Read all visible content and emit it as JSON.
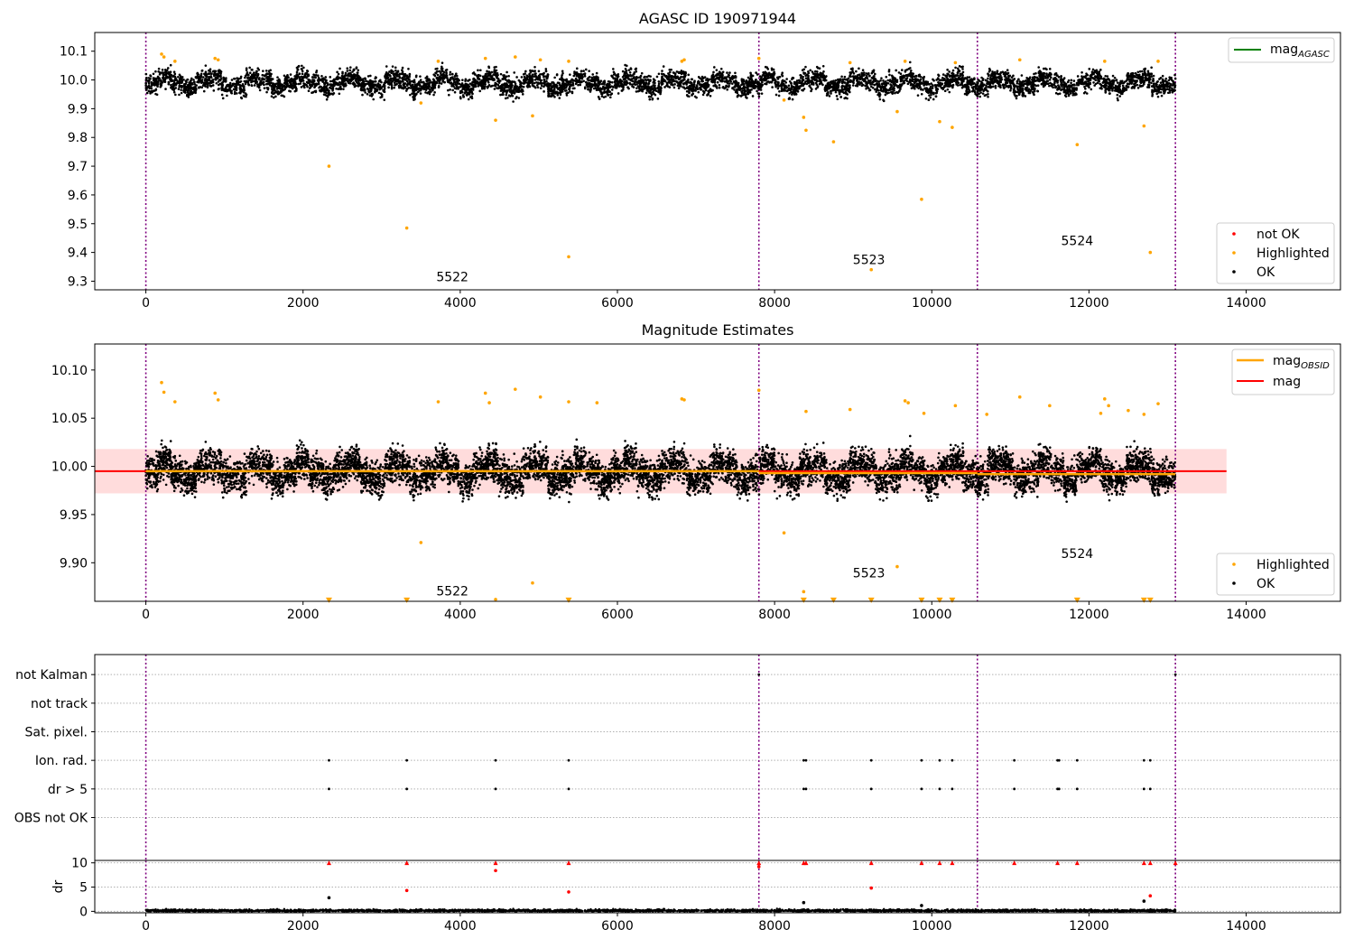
{
  "chart_data": [
    {
      "type": "scatter",
      "title": "AGASC ID 190971944",
      "xlabel": "",
      "ylabel": "",
      "xlim": [
        -650,
        15200
      ],
      "ylim": [
        9.27,
        10.165
      ],
      "xticks": [
        0,
        2000,
        4000,
        6000,
        8000,
        10000,
        12000,
        14000
      ],
      "yticks": [
        9.3,
        9.4,
        9.5,
        9.6,
        9.7,
        9.8,
        9.9,
        10.0,
        10.1
      ],
      "ytick_labels": [
        "9.3",
        "9.4",
        "9.5",
        "9.6",
        "9.7",
        "9.8",
        "9.9",
        "10.0",
        "10.1"
      ],
      "vlines": [
        0,
        7800,
        10580,
        13100
      ],
      "obsid_labels": [
        {
          "text": "5522",
          "x": 3900,
          "y": 9.3
        },
        {
          "text": "5523",
          "x": 9200,
          "y": 9.36
        },
        {
          "text": "5524",
          "x": 11850,
          "y": 9.425
        }
      ],
      "ok_band": {
        "x_range": [
          0,
          13100
        ],
        "center": 9.99,
        "spread": 0.055
      },
      "series": [
        {
          "name": "mag",
          "sub": "AGASC",
          "color": "#008000",
          "kind": "line",
          "values": []
        },
        {
          "name": "not OK",
          "color": "#ff0000",
          "kind": "marker",
          "points": []
        },
        {
          "name": "Highlighted",
          "color": "#ffa500",
          "kind": "marker",
          "points": [
            [
              200,
              10.09
            ],
            [
              230,
              10.08
            ],
            [
              370,
              10.065
            ],
            [
              880,
              10.075
            ],
            [
              920,
              10.07
            ],
            [
              2330,
              9.7
            ],
            [
              3320,
              9.485
            ],
            [
              3500,
              9.92
            ],
            [
              3720,
              10.065
            ],
            [
              4320,
              10.075
            ],
            [
              4450,
              9.86
            ],
            [
              4700,
              10.08
            ],
            [
              4920,
              9.875
            ],
            [
              5020,
              10.07
            ],
            [
              5380,
              9.385
            ],
            [
              5380,
              10.065
            ],
            [
              6820,
              10.065
            ],
            [
              6850,
              10.07
            ],
            [
              7800,
              10.075
            ],
            [
              8120,
              9.93
            ],
            [
              8370,
              9.87
            ],
            [
              8400,
              9.825
            ],
            [
              8750,
              9.785
            ],
            [
              8960,
              10.06
            ],
            [
              9230,
              9.34
            ],
            [
              9560,
              9.89
            ],
            [
              9660,
              10.065
            ],
            [
              9870,
              9.585
            ],
            [
              10100,
              9.855
            ],
            [
              10260,
              9.835
            ],
            [
              10300,
              10.06
            ],
            [
              11120,
              10.07
            ],
            [
              11850,
              9.775
            ],
            [
              12200,
              10.065
            ],
            [
              12700,
              9.84
            ],
            [
              12780,
              9.4
            ],
            [
              12880,
              10.065
            ]
          ]
        },
        {
          "name": "OK",
          "color": "#000000",
          "kind": "marker",
          "points": []
        }
      ],
      "legends": [
        {
          "position": "upper right",
          "entries": [
            {
              "label": "mag",
              "sub": "AGASC",
              "color": "#008000",
              "kind": "line"
            }
          ]
        },
        {
          "position": "lower right",
          "entries": [
            {
              "label": "not OK",
              "color": "#ff0000",
              "kind": "marker"
            },
            {
              "label": "Highlighted",
              "color": "#ffa500",
              "kind": "marker"
            },
            {
              "label": "OK",
              "color": "#000000",
              "kind": "marker"
            }
          ]
        }
      ]
    },
    {
      "type": "scatter",
      "title": "Magnitude Estimates",
      "xlabel": "",
      "ylabel": "",
      "xlim": [
        -650,
        15200
      ],
      "ylim": [
        9.86,
        10.127
      ],
      "xticks": [
        0,
        2000,
        4000,
        6000,
        8000,
        10000,
        12000,
        14000
      ],
      "yticks": [
        9.9,
        9.95,
        10.0,
        10.05,
        10.1
      ],
      "ytick_labels": [
        "9.90",
        "9.95",
        "10.00",
        "10.05",
        "10.10"
      ],
      "vlines": [
        0,
        7800,
        10580,
        13100
      ],
      "obsid_labels": [
        {
          "text": "5522",
          "x": 3900,
          "y": 9.866
        },
        {
          "text": "5523",
          "x": 9200,
          "y": 9.885
        },
        {
          "text": "5524",
          "x": 11850,
          "y": 9.905
        }
      ],
      "ok_band": {
        "x_range": [
          0,
          13100
        ],
        "center": 9.995,
        "spread": 0.028
      },
      "mag_band": {
        "x_range": [
          -650,
          13750
        ],
        "low": 9.972,
        "high": 10.018,
        "color": "#ffc0c0"
      },
      "series": [
        {
          "name": "mag",
          "sub": "OBSID",
          "color": "#ffa500",
          "kind": "line",
          "segments": [
            {
              "x": [
                0,
                7800
              ],
              "y": [
                9.995,
                9.995
              ]
            },
            {
              "x": [
                7800,
                10580
              ],
              "y": [
                9.993,
                9.993
              ]
            },
            {
              "x": [
                10580,
                13100
              ],
              "y": [
                9.992,
                9.992
              ]
            }
          ]
        },
        {
          "name": "mag",
          "color": "#ff0000",
          "kind": "line",
          "x": [
            -650,
            13750
          ],
          "y": [
            9.995,
            9.995
          ]
        },
        {
          "name": "Highlighted",
          "color": "#ffa500",
          "kind": "marker",
          "points": [
            [
              200,
              10.087
            ],
            [
              230,
              10.077
            ],
            [
              370,
              10.067
            ],
            [
              880,
              10.076
            ],
            [
              920,
              10.069
            ],
            [
              3500,
              9.921
            ],
            [
              3720,
              10.067
            ],
            [
              4320,
              10.076
            ],
            [
              4370,
              10.066
            ],
            [
              4450,
              9.862
            ],
            [
              4700,
              10.08
            ],
            [
              4920,
              9.879
            ],
            [
              5020,
              10.072
            ],
            [
              5380,
              10.067
            ],
            [
              5740,
              10.066
            ],
            [
              6820,
              10.07
            ],
            [
              6850,
              10.069
            ],
            [
              7800,
              10.079
            ],
            [
              8120,
              9.931
            ],
            [
              8370,
              9.87
            ],
            [
              8400,
              10.057
            ],
            [
              8960,
              10.059
            ],
            [
              9560,
              9.896
            ],
            [
              9660,
              10.068
            ],
            [
              9700,
              10.066
            ],
            [
              9900,
              10.055
            ],
            [
              10300,
              10.063
            ],
            [
              10700,
              10.054
            ],
            [
              11120,
              10.072
            ],
            [
              11500,
              10.063
            ],
            [
              12150,
              10.055
            ],
            [
              12200,
              10.07
            ],
            [
              12250,
              10.063
            ],
            [
              12500,
              10.058
            ],
            [
              12700,
              10.054
            ],
            [
              12880,
              10.065
            ]
          ]
        },
        {
          "name": "Highlighted (off-scale)",
          "color": "#ffa500",
          "kind": "triangle-down",
          "points": [
            [
              2330,
              9.861
            ],
            [
              3320,
              9.861
            ],
            [
              5380,
              9.861
            ],
            [
              8370,
              9.861
            ],
            [
              8750,
              9.861
            ],
            [
              9230,
              9.861
            ],
            [
              9870,
              9.861
            ],
            [
              10100,
              9.861
            ],
            [
              10260,
              9.861
            ],
            [
              11850,
              9.861
            ],
            [
              12700,
              9.861
            ],
            [
              12780,
              9.861
            ]
          ]
        },
        {
          "name": "OK",
          "color": "#000000",
          "kind": "marker",
          "points": []
        }
      ],
      "legends": [
        {
          "position": "upper right",
          "entries": [
            {
              "label": "mag",
              "sub": "OBSID",
              "color": "#ffa500",
              "kind": "line"
            },
            {
              "label": "mag",
              "color": "#ff0000",
              "kind": "line"
            }
          ]
        },
        {
          "position": "lower right",
          "entries": [
            {
              "label": "Highlighted",
              "color": "#ffa500",
              "kind": "marker"
            },
            {
              "label": "OK",
              "color": "#000000",
              "kind": "marker"
            }
          ]
        }
      ]
    },
    {
      "type": "scatter",
      "title": "",
      "xlabel": "",
      "ylabel": "",
      "xlim": [
        -650,
        15200
      ],
      "ylim": [
        -0.5,
        6.7
      ],
      "flag_rows": [
        "not Kalman",
        "not track",
        "Sat. pixel.",
        "Ion. rad.",
        "dr > 5",
        "OBS not OK"
      ],
      "vlines": [
        0,
        7800,
        10580,
        13100
      ],
      "series": [
        {
          "name": "not Kalman",
          "color": "#000000",
          "kind": "marker",
          "points": [
            [
              7800,
              6
            ],
            [
              13100,
              6
            ]
          ]
        },
        {
          "name": "Ion. rad.",
          "color": "#000000",
          "kind": "marker",
          "points": [
            [
              2330,
              3
            ],
            [
              3320,
              3
            ],
            [
              4450,
              3
            ],
            [
              5380,
              3
            ],
            [
              8370,
              3
            ],
            [
              8400,
              3
            ],
            [
              9230,
              3
            ],
            [
              9870,
              3
            ],
            [
              10100,
              3
            ],
            [
              10260,
              3
            ],
            [
              11050,
              3
            ],
            [
              11600,
              3
            ],
            [
              11620,
              3
            ],
            [
              11850,
              3
            ],
            [
              12700,
              3
            ],
            [
              12780,
              3
            ]
          ]
        },
        {
          "name": "dr > 5",
          "color": "#000000",
          "kind": "marker",
          "points": [
            [
              2330,
              2
            ],
            [
              3320,
              2
            ],
            [
              4450,
              2
            ],
            [
              5380,
              2
            ],
            [
              8370,
              2
            ],
            [
              8400,
              2
            ],
            [
              9230,
              2
            ],
            [
              9870,
              2
            ],
            [
              10100,
              2
            ],
            [
              10260,
              2
            ],
            [
              11050,
              2
            ],
            [
              11600,
              2
            ],
            [
              11620,
              2
            ],
            [
              11850,
              2
            ],
            [
              12700,
              2
            ],
            [
              12780,
              2
            ]
          ]
        }
      ]
    },
    {
      "type": "scatter",
      "title": "",
      "xlabel": "",
      "ylabel": "dr",
      "xlim": [
        -650,
        15200
      ],
      "ylim": [
        -0.3,
        10.5
      ],
      "xticks": [
        0,
        2000,
        4000,
        6000,
        8000,
        10000,
        12000,
        14000
      ],
      "yticks": [
        0,
        5,
        10
      ],
      "ytick_labels": [
        "0",
        "5",
        "10"
      ],
      "vlines": [
        0,
        7800,
        10580,
        13100
      ],
      "series": [
        {
          "name": "dr (large, clipped)",
          "color": "#ff0000",
          "kind": "triangle-up",
          "points": [
            [
              2330,
              10
            ],
            [
              3320,
              10
            ],
            [
              4450,
              10
            ],
            [
              5380,
              10
            ],
            [
              7800,
              10
            ],
            [
              8370,
              10
            ],
            [
              8400,
              10
            ],
            [
              9230,
              10
            ],
            [
              9870,
              10
            ],
            [
              10100,
              10
            ],
            [
              10260,
              10
            ],
            [
              11050,
              10
            ],
            [
              11600,
              10
            ],
            [
              11850,
              10
            ],
            [
              12700,
              10
            ],
            [
              12780,
              10
            ],
            [
              13100,
              10
            ]
          ]
        },
        {
          "name": "dr (highlighted)",
          "color": "#ff0000",
          "kind": "marker",
          "points": [
            [
              3320,
              4.3
            ],
            [
              5380,
              4.0
            ],
            [
              9230,
              4.8
            ],
            [
              12780,
              3.2
            ],
            [
              4450,
              8.4
            ],
            [
              7800,
              9.2
            ]
          ]
        },
        {
          "name": "dr (other)",
          "color": "#000000",
          "kind": "marker",
          "points": [
            [
              2330,
              2.8
            ],
            [
              8370,
              1.8
            ],
            [
              12700,
              2.1
            ],
            [
              9870,
              1.2
            ]
          ]
        },
        {
          "name": "OK",
          "color": "#000000",
          "kind": "marker",
          "points": []
        }
      ]
    }
  ]
}
